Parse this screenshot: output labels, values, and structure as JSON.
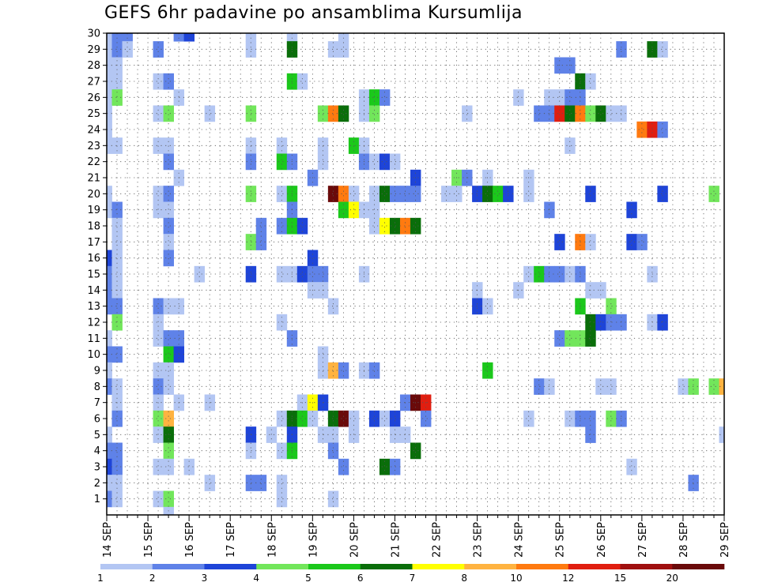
{
  "title": "GEFS 6hr padavine po ansamblima Kursumlija",
  "chart_data": {
    "type": "heatmap",
    "title": "GEFS 6hr padavine po ansamblima Kursumlija",
    "xlabel": "",
    "ylabel": "",
    "x_tick_labels": [
      "14 SEP",
      "15 SEP",
      "16 SEP",
      "17 SEP",
      "18 SEP",
      "19 SEP",
      "20 SEP",
      "21 SEP",
      "22 SEP",
      "23 SEP",
      "24 SEP",
      "25 SEP",
      "26 SEP",
      "27 SEP",
      "28 SEP",
      "29 SEP"
    ],
    "y_tick_labels": [
      "1",
      "2",
      "3",
      "4",
      "5",
      "6",
      "7",
      "8",
      "9",
      "10",
      "11",
      "12",
      "13",
      "14",
      "15",
      "16",
      "17",
      "18",
      "19",
      "20",
      "21",
      "22",
      "23",
      "24",
      "25",
      "26",
      "27",
      "28",
      "29",
      "30"
    ],
    "x_range_steps": [
      0,
      60
    ],
    "y_range_members": [
      0,
      30
    ],
    "grid": true,
    "legend_placement": "bottom",
    "legend_levels": [
      "1",
      "2",
      "3",
      "4",
      "5",
      "6",
      "7",
      "8",
      "10",
      "12",
      "15",
      "20"
    ],
    "legend_colors": [
      "#b3c6f3",
      "#5f82e8",
      "#1e44d8",
      "#72e65b",
      "#1bc81b",
      "#0a6e0a",
      "#ffff00",
      "#ffb340",
      "#ff7a10",
      "#e01e10",
      "#a01010",
      "#6a0a0a"
    ],
    "class_meaning": "class index k = 6hr precipitation between legend level k and k+1 (k=0: 1-2 ... k=11: >20)",
    "cells": [
      [
        0,
        30,
        0
      ],
      [
        1,
        30,
        1
      ],
      [
        2,
        30,
        1
      ],
      [
        7,
        30,
        1
      ],
      [
        8,
        30,
        2
      ],
      [
        14,
        30,
        0
      ],
      [
        18,
        30,
        0
      ],
      [
        23,
        30,
        0
      ],
      [
        0,
        29,
        0
      ],
      [
        1,
        29,
        1
      ],
      [
        2,
        29,
        0
      ],
      [
        5,
        29,
        1
      ],
      [
        14,
        29,
        0
      ],
      [
        18,
        29,
        5
      ],
      [
        22,
        29,
        0
      ],
      [
        23,
        29,
        0
      ],
      [
        50,
        29,
        1
      ],
      [
        53,
        29,
        5
      ],
      [
        54,
        29,
        0
      ],
      [
        0,
        28,
        0
      ],
      [
        1,
        28,
        0
      ],
      [
        44,
        28,
        1
      ],
      [
        45,
        28,
        1
      ],
      [
        0,
        27,
        0
      ],
      [
        1,
        27,
        0
      ],
      [
        5,
        27,
        0
      ],
      [
        6,
        27,
        1
      ],
      [
        18,
        27,
        4
      ],
      [
        19,
        27,
        0
      ],
      [
        46,
        27,
        5
      ],
      [
        47,
        27,
        0
      ],
      [
        0,
        26,
        0
      ],
      [
        1,
        26,
        3
      ],
      [
        7,
        26,
        0
      ],
      [
        25,
        26,
        0
      ],
      [
        26,
        26,
        4
      ],
      [
        27,
        26,
        1
      ],
      [
        40,
        26,
        0
      ],
      [
        43,
        26,
        0
      ],
      [
        44,
        26,
        0
      ],
      [
        45,
        26,
        1
      ],
      [
        46,
        26,
        1
      ],
      [
        0,
        25,
        0
      ],
      [
        5,
        25,
        0
      ],
      [
        6,
        25,
        3
      ],
      [
        10,
        25,
        0
      ],
      [
        14,
        25,
        3
      ],
      [
        21,
        25,
        3
      ],
      [
        22,
        25,
        8
      ],
      [
        23,
        25,
        5
      ],
      [
        25,
        25,
        0
      ],
      [
        26,
        25,
        3
      ],
      [
        35,
        25,
        0
      ],
      [
        42,
        25,
        1
      ],
      [
        43,
        25,
        1
      ],
      [
        44,
        25,
        9
      ],
      [
        45,
        25,
        5
      ],
      [
        46,
        25,
        8
      ],
      [
        47,
        25,
        3
      ],
      [
        48,
        25,
        5
      ],
      [
        49,
        25,
        0
      ],
      [
        50,
        25,
        0
      ],
      [
        0,
        24,
        0
      ],
      [
        52,
        24,
        8
      ],
      [
        53,
        24,
        9
      ],
      [
        54,
        24,
        1
      ],
      [
        0,
        23,
        0
      ],
      [
        1,
        23,
        0
      ],
      [
        5,
        23,
        0
      ],
      [
        6,
        23,
        0
      ],
      [
        14,
        23,
        0
      ],
      [
        17,
        23,
        0
      ],
      [
        21,
        23,
        0
      ],
      [
        24,
        23,
        4
      ],
      [
        25,
        23,
        0
      ],
      [
        45,
        23,
        0
      ],
      [
        6,
        22,
        1
      ],
      [
        14,
        22,
        1
      ],
      [
        17,
        22,
        4
      ],
      [
        18,
        22,
        1
      ],
      [
        21,
        22,
        0
      ],
      [
        25,
        22,
        1
      ],
      [
        26,
        22,
        0
      ],
      [
        27,
        22,
        2
      ],
      [
        28,
        22,
        0
      ],
      [
        7,
        21,
        0
      ],
      [
        20,
        21,
        1
      ],
      [
        30,
        21,
        2
      ],
      [
        34,
        21,
        3
      ],
      [
        35,
        21,
        1
      ],
      [
        37,
        21,
        0
      ],
      [
        41,
        21,
        0
      ],
      [
        0,
        20,
        0
      ],
      [
        5,
        20,
        0
      ],
      [
        6,
        20,
        1
      ],
      [
        14,
        20,
        3
      ],
      [
        17,
        20,
        0
      ],
      [
        18,
        20,
        4
      ],
      [
        22,
        20,
        11
      ],
      [
        23,
        20,
        8
      ],
      [
        24,
        20,
        0
      ],
      [
        26,
        20,
        0
      ],
      [
        27,
        20,
        5
      ],
      [
        28,
        20,
        1
      ],
      [
        29,
        20,
        1
      ],
      [
        30,
        20,
        1
      ],
      [
        33,
        20,
        0
      ],
      [
        34,
        20,
        0
      ],
      [
        36,
        20,
        2
      ],
      [
        37,
        20,
        5
      ],
      [
        38,
        20,
        4
      ],
      [
        39,
        20,
        2
      ],
      [
        41,
        20,
        0
      ],
      [
        47,
        20,
        2
      ],
      [
        54,
        20,
        2
      ],
      [
        59,
        20,
        3
      ],
      [
        0,
        19,
        0
      ],
      [
        1,
        19,
        1
      ],
      [
        5,
        19,
        0
      ],
      [
        6,
        19,
        0
      ],
      [
        18,
        19,
        1
      ],
      [
        23,
        19,
        4
      ],
      [
        24,
        19,
        6
      ],
      [
        25,
        19,
        0
      ],
      [
        26,
        19,
        0
      ],
      [
        43,
        19,
        1
      ],
      [
        51,
        19,
        2
      ],
      [
        1,
        18,
        0
      ],
      [
        6,
        18,
        1
      ],
      [
        15,
        18,
        1
      ],
      [
        17,
        18,
        1
      ],
      [
        18,
        18,
        4
      ],
      [
        19,
        18,
        2
      ],
      [
        26,
        18,
        0
      ],
      [
        27,
        18,
        6
      ],
      [
        28,
        18,
        5
      ],
      [
        29,
        18,
        8
      ],
      [
        30,
        18,
        5
      ],
      [
        1,
        17,
        0
      ],
      [
        6,
        17,
        0
      ],
      [
        14,
        17,
        3
      ],
      [
        15,
        17,
        1
      ],
      [
        44,
        17,
        2
      ],
      [
        46,
        17,
        8
      ],
      [
        47,
        17,
        0
      ],
      [
        51,
        17,
        2
      ],
      [
        52,
        17,
        1
      ],
      [
        0,
        16,
        2
      ],
      [
        1,
        16,
        0
      ],
      [
        6,
        16,
        1
      ],
      [
        20,
        16,
        2
      ],
      [
        0,
        15,
        1
      ],
      [
        1,
        15,
        0
      ],
      [
        9,
        15,
        0
      ],
      [
        14,
        15,
        2
      ],
      [
        17,
        15,
        0
      ],
      [
        18,
        15,
        0
      ],
      [
        19,
        15,
        2
      ],
      [
        20,
        15,
        1
      ],
      [
        21,
        15,
        1
      ],
      [
        25,
        15,
        0
      ],
      [
        41,
        15,
        0
      ],
      [
        42,
        15,
        4
      ],
      [
        43,
        15,
        1
      ],
      [
        44,
        15,
        1
      ],
      [
        45,
        15,
        0
      ],
      [
        46,
        15,
        1
      ],
      [
        53,
        15,
        0
      ],
      [
        0,
        14,
        1
      ],
      [
        1,
        14,
        0
      ],
      [
        20,
        14,
        0
      ],
      [
        21,
        14,
        0
      ],
      [
        36,
        14,
        0
      ],
      [
        40,
        14,
        0
      ],
      [
        47,
        14,
        0
      ],
      [
        48,
        14,
        0
      ],
      [
        0,
        13,
        1
      ],
      [
        1,
        13,
        1
      ],
      [
        5,
        13,
        1
      ],
      [
        6,
        13,
        0
      ],
      [
        7,
        13,
        0
      ],
      [
        22,
        13,
        0
      ],
      [
        36,
        13,
        2
      ],
      [
        37,
        13,
        0
      ],
      [
        46,
        13,
        4
      ],
      [
        49,
        13,
        3
      ],
      [
        1,
        12,
        3
      ],
      [
        5,
        12,
        0
      ],
      [
        17,
        12,
        0
      ],
      [
        47,
        12,
        5
      ],
      [
        48,
        12,
        2
      ],
      [
        49,
        12,
        1
      ],
      [
        50,
        12,
        1
      ],
      [
        53,
        12,
        0
      ],
      [
        54,
        12,
        2
      ],
      [
        0,
        11,
        0
      ],
      [
        5,
        11,
        0
      ],
      [
        6,
        11,
        1
      ],
      [
        7,
        11,
        1
      ],
      [
        18,
        11,
        1
      ],
      [
        44,
        11,
        1
      ],
      [
        45,
        11,
        3
      ],
      [
        46,
        11,
        3
      ],
      [
        47,
        11,
        5
      ],
      [
        0,
        10,
        1
      ],
      [
        1,
        10,
        1
      ],
      [
        6,
        10,
        4
      ],
      [
        7,
        10,
        2
      ],
      [
        21,
        10,
        0
      ],
      [
        0,
        9,
        0
      ],
      [
        5,
        9,
        0
      ],
      [
        6,
        9,
        0
      ],
      [
        21,
        9,
        0
      ],
      [
        22,
        9,
        7
      ],
      [
        23,
        9,
        1
      ],
      [
        25,
        9,
        0
      ],
      [
        26,
        9,
        1
      ],
      [
        37,
        9,
        4
      ],
      [
        0,
        8,
        1
      ],
      [
        1,
        8,
        0
      ],
      [
        5,
        8,
        1
      ],
      [
        6,
        8,
        0
      ],
      [
        42,
        8,
        1
      ],
      [
        43,
        8,
        0
      ],
      [
        48,
        8,
        0
      ],
      [
        49,
        8,
        0
      ],
      [
        56,
        8,
        0
      ],
      [
        57,
        8,
        3
      ],
      [
        59,
        8,
        3
      ],
      [
        60,
        8,
        7
      ],
      [
        1,
        7,
        0
      ],
      [
        5,
        7,
        0
      ],
      [
        7,
        7,
        0
      ],
      [
        10,
        7,
        0
      ],
      [
        19,
        7,
        0
      ],
      [
        20,
        7,
        6
      ],
      [
        21,
        7,
        2
      ],
      [
        29,
        7,
        1
      ],
      [
        30,
        7,
        11
      ],
      [
        31,
        7,
        9
      ],
      [
        1,
        6,
        1
      ],
      [
        5,
        6,
        3
      ],
      [
        6,
        6,
        7
      ],
      [
        17,
        6,
        0
      ],
      [
        18,
        6,
        5
      ],
      [
        19,
        6,
        4
      ],
      [
        20,
        6,
        0
      ],
      [
        22,
        6,
        5
      ],
      [
        23,
        6,
        11
      ],
      [
        24,
        6,
        0
      ],
      [
        26,
        6,
        2
      ],
      [
        27,
        6,
        0
      ],
      [
        28,
        6,
        2
      ],
      [
        31,
        6,
        1
      ],
      [
        41,
        6,
        0
      ],
      [
        45,
        6,
        0
      ],
      [
        46,
        6,
        1
      ],
      [
        47,
        6,
        1
      ],
      [
        49,
        6,
        3
      ],
      [
        50,
        6,
        1
      ],
      [
        0,
        5,
        0
      ],
      [
        5,
        5,
        0
      ],
      [
        6,
        5,
        5
      ],
      [
        14,
        5,
        2
      ],
      [
        16,
        5,
        0
      ],
      [
        18,
        5,
        2
      ],
      [
        21,
        5,
        0
      ],
      [
        22,
        5,
        0
      ],
      [
        24,
        5,
        0
      ],
      [
        28,
        5,
        0
      ],
      [
        29,
        5,
        0
      ],
      [
        47,
        5,
        1
      ],
      [
        60,
        5,
        0
      ],
      [
        0,
        4,
        1
      ],
      [
        1,
        4,
        1
      ],
      [
        6,
        4,
        3
      ],
      [
        14,
        4,
        0
      ],
      [
        17,
        4,
        0
      ],
      [
        18,
        4,
        4
      ],
      [
        22,
        4,
        1
      ],
      [
        30,
        4,
        5
      ],
      [
        0,
        3,
        2
      ],
      [
        1,
        3,
        1
      ],
      [
        5,
        3,
        0
      ],
      [
        6,
        3,
        0
      ],
      [
        8,
        3,
        0
      ],
      [
        23,
        3,
        1
      ],
      [
        27,
        3,
        5
      ],
      [
        28,
        3,
        1
      ],
      [
        51,
        3,
        0
      ],
      [
        0,
        2,
        0
      ],
      [
        1,
        2,
        0
      ],
      [
        10,
        2,
        0
      ],
      [
        14,
        2,
        1
      ],
      [
        15,
        2,
        1
      ],
      [
        17,
        2,
        0
      ],
      [
        57,
        2,
        1
      ],
      [
        0,
        1,
        1
      ],
      [
        1,
        1,
        0
      ],
      [
        5,
        1,
        0
      ],
      [
        6,
        1,
        3
      ],
      [
        17,
        1,
        0
      ],
      [
        22,
        1,
        0
      ],
      [
        6,
        0,
        0
      ]
    ]
  }
}
